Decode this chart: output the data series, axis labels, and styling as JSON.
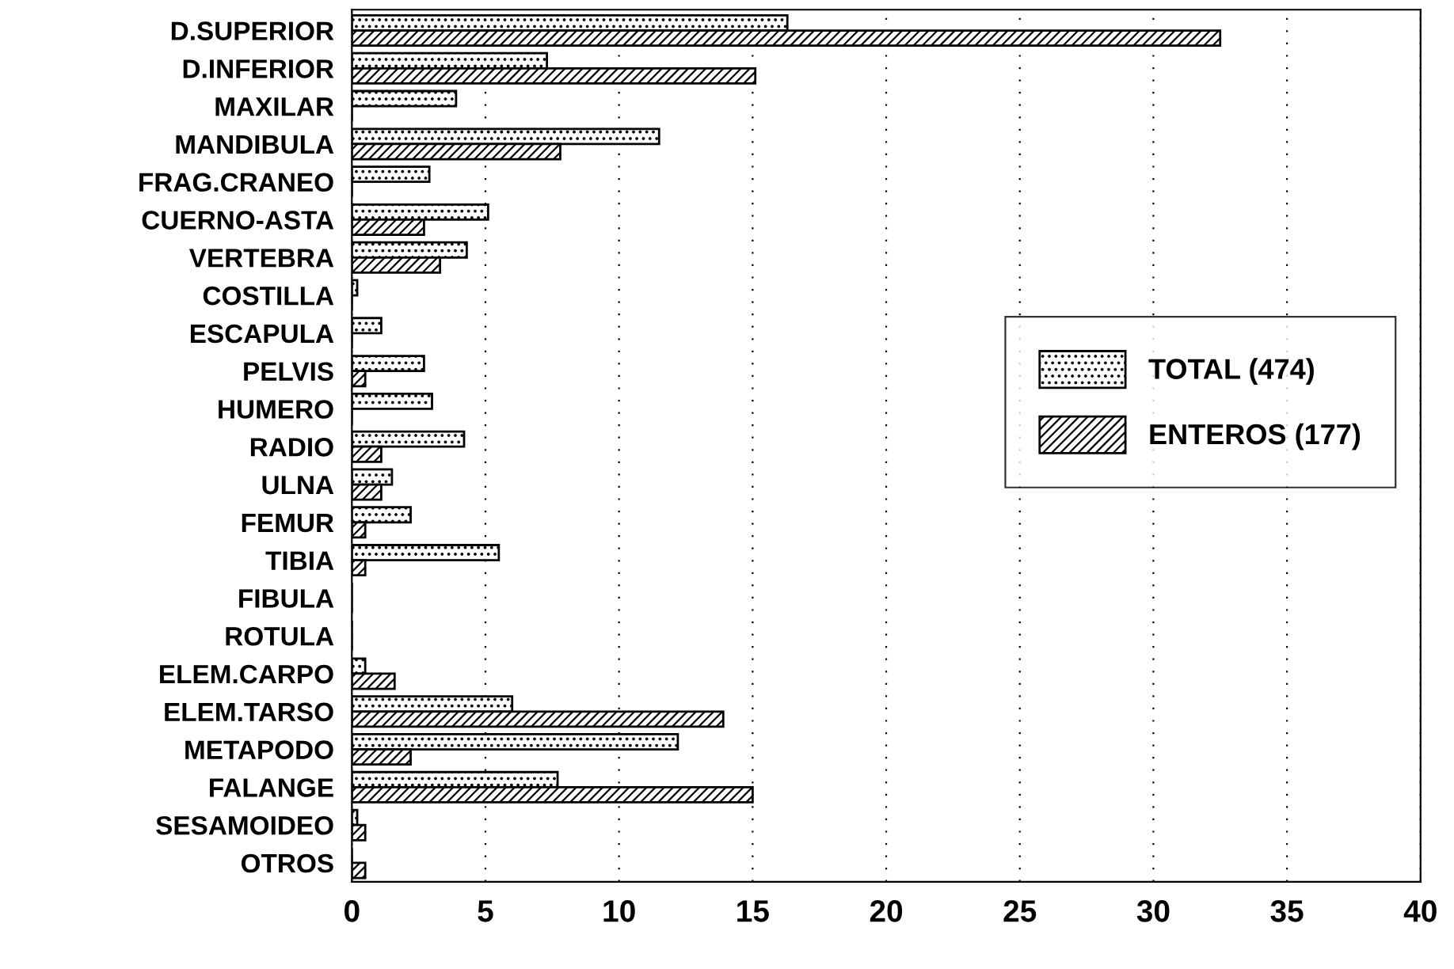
{
  "chart_data": {
    "type": "bar",
    "orientation": "horizontal",
    "categories": [
      "D.SUPERIOR",
      "D.INFERIOR",
      "MAXILAR",
      "MANDIBULA",
      "FRAG.CRANEO",
      "CUERNO-ASTA",
      "VERTEBRA",
      "COSTILLA",
      "ESCAPULA",
      "PELVIS",
      "HUMERO",
      "RADIO",
      "ULNA",
      "FEMUR",
      "TIBIA",
      "FIBULA",
      "ROTULA",
      "ELEM.CARPO",
      "ELEM.TARSO",
      "METAPODO",
      "FALANGE",
      "SESAMOIDEO",
      "OTROS"
    ],
    "series": [
      {
        "name": "TOTAL (474)",
        "color": "#000000",
        "values": [
          16.3,
          7.3,
          3.9,
          11.5,
          2.9,
          5.1,
          4.3,
          0.2,
          1.1,
          2.7,
          3.0,
          4.2,
          1.5,
          2.2,
          5.5,
          0,
          0,
          0.5,
          6.0,
          12.2,
          7.7,
          0.2,
          0
        ]
      },
      {
        "name": "ENTEROS (177)",
        "color": "#000000",
        "values": [
          32.5,
          15.1,
          0,
          7.8,
          0,
          2.7,
          3.3,
          0,
          0,
          0.5,
          0,
          1.1,
          1.1,
          0.5,
          0.5,
          0,
          0,
          1.6,
          13.9,
          2.2,
          15.0,
          0.5,
          0.5
        ]
      }
    ],
    "xlim": [
      0,
      40
    ],
    "xticks": [
      0,
      5,
      10,
      15,
      20,
      25,
      30,
      35,
      40
    ],
    "grid": "x",
    "legend": "right"
  }
}
